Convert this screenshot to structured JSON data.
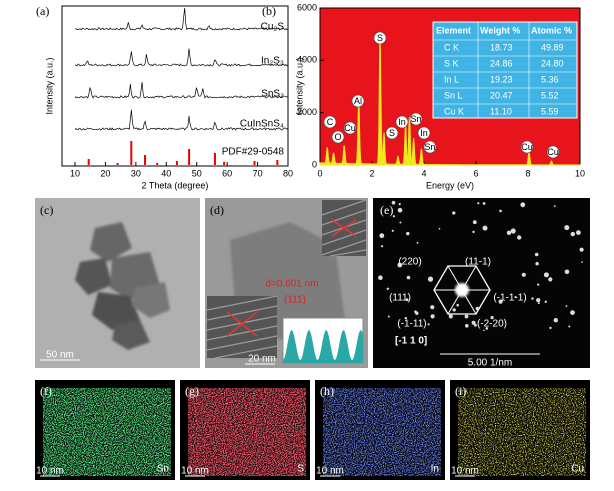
{
  "panels": {
    "a": {
      "label": "(a)",
      "y_label": "Intensity (a.u.)",
      "x_label": "2 Theta (degree)",
      "xticks": [
        "10",
        "20",
        "30",
        "40",
        "50",
        "60",
        "70",
        "80"
      ],
      "traces": [
        "Cu₂S",
        "In₂S₃",
        "SnS₂",
        "CuInSnS₄",
        "PDF#29-0548"
      ]
    },
    "b": {
      "label": "(b)",
      "y_label": "Intensity (a.u.)",
      "x_label": "Energy (eV)",
      "xticks": [
        "0",
        "2",
        "4",
        "6",
        "8",
        "10"
      ],
      "yticks": [
        "0",
        "2000",
        "4000",
        "6000"
      ],
      "peaks": [
        "C",
        "O",
        "Cu",
        "Al",
        "S",
        "S",
        "In",
        "Sn",
        "In",
        "Sn",
        "Cu",
        "Cu"
      ],
      "table": {
        "header": [
          "Element",
          "Weight %",
          "Atomic %"
        ],
        "rows": [
          [
            "C K",
            "18.73",
            "49.89"
          ],
          [
            "S K",
            "24.86",
            "24.80"
          ],
          [
            "In L",
            "19.23",
            "5.36"
          ],
          [
            "Sn L",
            "20.47",
            "5.52"
          ],
          [
            "Cu K",
            "11.10",
            "5.59"
          ]
        ]
      }
    },
    "c": {
      "label": "(c)",
      "scale": "50 nm"
    },
    "d": {
      "label": "(d)",
      "spacing": "d=0.601 nm",
      "plane": "(111)",
      "scale": "20 nm"
    },
    "e": {
      "label": "(e)",
      "spots": [
        "(220)",
        "(11-1)",
        "(111)",
        "(-1-1-1)",
        "(-1-11)",
        "(-2-20)"
      ],
      "zone": "[-1 1 0]",
      "scale": "5.00 1/nm"
    },
    "f": {
      "label": "(f)",
      "element": "Sn",
      "scale": "10 nm"
    },
    "g": {
      "label": "(g)",
      "element": "S",
      "scale": "10 nm"
    },
    "h": {
      "label": "(h)",
      "element": "In",
      "scale": "10 nm"
    },
    "i": {
      "label": "(i)",
      "element": "Cu",
      "scale": "10 nm"
    }
  }
}
